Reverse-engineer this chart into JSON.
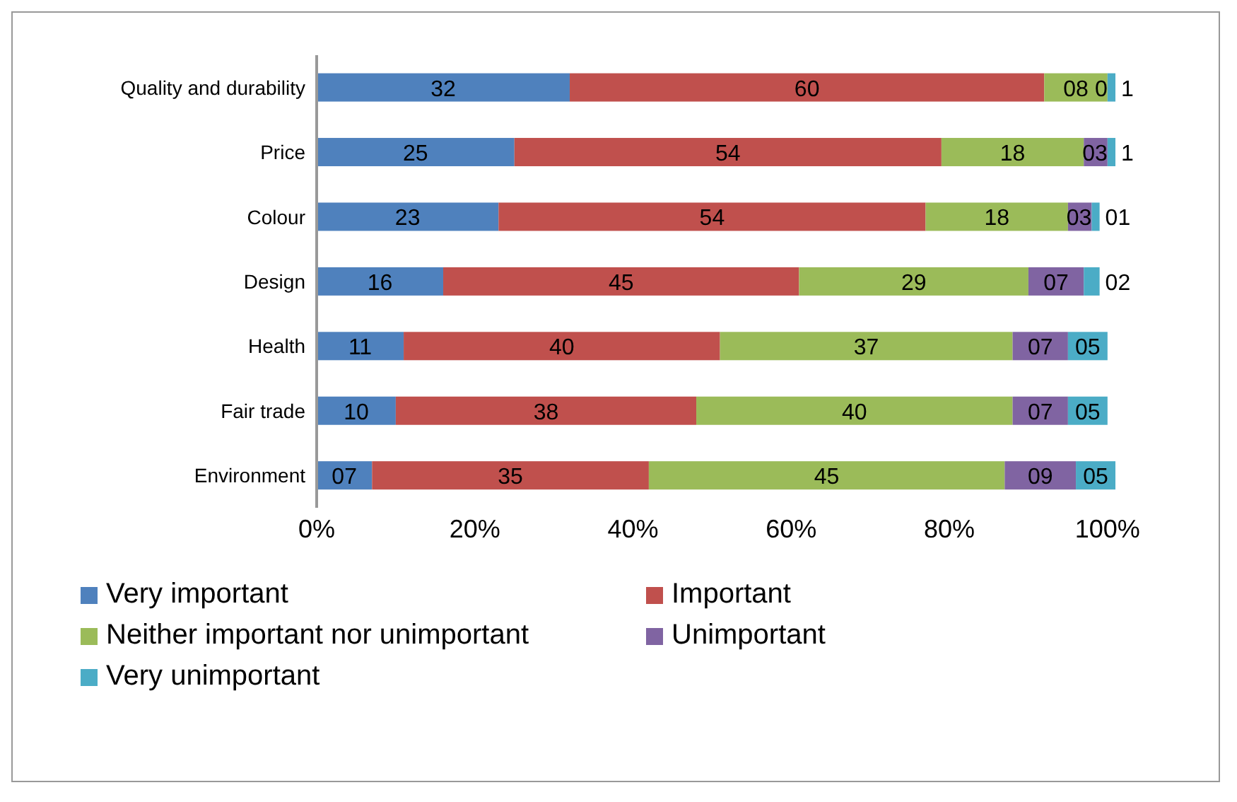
{
  "chart_data": {
    "type": "bar",
    "orientation": "horizontal",
    "stacked": true,
    "categories": [
      "Quality and durability",
      "Price",
      "Colour",
      "Design",
      "Health",
      "Fair trade",
      "Environment"
    ],
    "series": [
      {
        "name": "Very important",
        "color": "#4f81bd",
        "values": [
          32,
          25,
          23,
          16,
          11,
          10,
          7
        ],
        "value_labels": [
          "32",
          "25",
          "23",
          "16",
          "11",
          "10",
          "07"
        ]
      },
      {
        "name": "Important",
        "color": "#c0504d",
        "values": [
          60,
          54,
          54,
          45,
          40,
          38,
          35
        ],
        "value_labels": [
          "60",
          "54",
          "54",
          "45",
          "40",
          "38",
          "35"
        ]
      },
      {
        "name": "Neither important nor unimportant",
        "color": "#9bbb59",
        "values": [
          8,
          18,
          18,
          29,
          37,
          40,
          45
        ],
        "value_labels": [
          "08",
          "18",
          "18",
          "29",
          "37",
          "40",
          "45"
        ]
      },
      {
        "name": "Unimportant",
        "color": "#8064a2",
        "values": [
          0,
          3,
          3,
          7,
          7,
          7,
          9
        ],
        "value_labels": [
          "0",
          "03",
          "03",
          "07",
          "07",
          "07",
          "09"
        ]
      },
      {
        "name": "Very unimportant",
        "color": "#4bacc6",
        "values": [
          1,
          1,
          1,
          2,
          5,
          5,
          5
        ],
        "value_labels": [
          "1",
          "1",
          "01",
          "02",
          "05",
          "05",
          "05"
        ]
      }
    ],
    "xlim": [
      0,
      101
    ],
    "xticks": [
      {
        "value": 0,
        "label": "0%"
      },
      {
        "value": 20,
        "label": "20%"
      },
      {
        "value": 40,
        "label": "40%"
      },
      {
        "value": 60,
        "label": "60%"
      },
      {
        "value": 80,
        "label": "80%"
      },
      {
        "value": 100,
        "label": "100%"
      }
    ],
    "legend": "bottom",
    "grid": false
  }
}
